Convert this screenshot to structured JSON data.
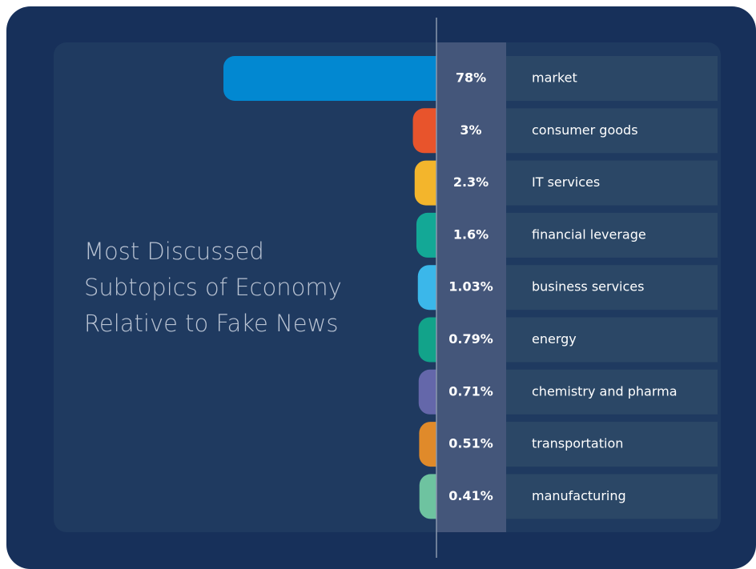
{
  "chart_data": {
    "type": "bar",
    "title": "Most Discussed Subtopics of Economy Relative to Fake News",
    "categories": [
      "market",
      "consumer goods",
      "IT services",
      "financial leverage",
      "business services",
      "energy",
      "chemistry and pharma",
      "transportation",
      "manufacturing"
    ],
    "values": [
      78,
      3,
      2.3,
      1.6,
      1.03,
      0.79,
      0.71,
      0.51,
      0.41
    ],
    "value_labels": [
      "78%",
      "3%",
      "2.3%",
      "1.6%",
      "1.03%",
      "0.79%",
      "0.71%",
      "0.51%",
      "0.41%"
    ],
    "colors": [
      "#0288d1",
      "#e8542c",
      "#f3b52c",
      "#13a896",
      "#3bb7ea",
      "#12a38a",
      "#6467aa",
      "#e08a2a",
      "#6ec3a0"
    ]
  }
}
